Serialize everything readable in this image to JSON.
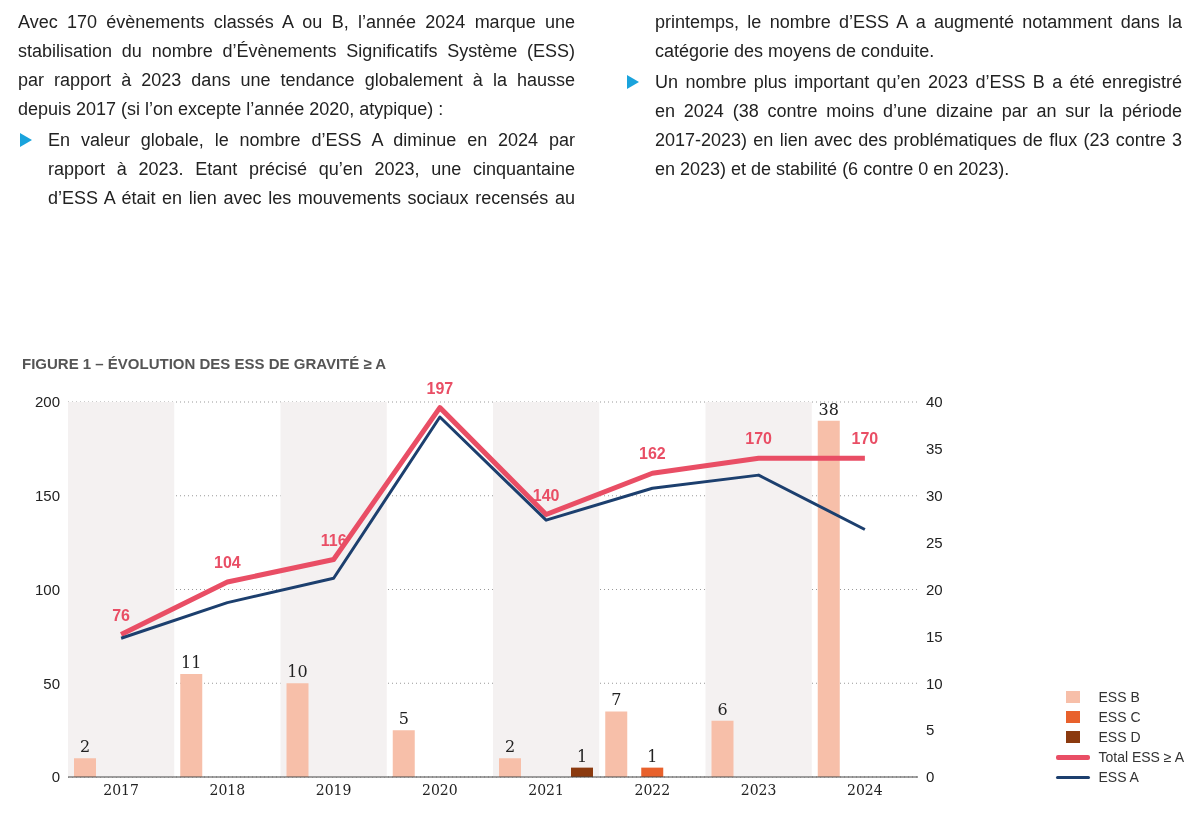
{
  "chart_data": {
    "type": "bar",
    "title": "FIGURE 1 – ÉVOLUTION DES ESS DE GRAVITÉ ≥ A",
    "annotations": [
      "Avec 170 évènements classés A ou B, l’année 2024 marque une stabilisation du nombre d’Évènements Significatifs Système (ESS) par rapport à 2023 dans une tendance globalement à la hausse depuis 2017 (si l’on excepte l’année 2020, atypique) :",
      "En valeur globale, le nombre d’ESS A diminue en 2024 par rapport à 2023. Etant précisé qu’en 2023, une cinquantaine d’ESS A était en lien avec les mouvements sociaux recensés au printemps, le nombre d’ESS A a augmenté notamment dans la catégorie des moyens de conduite.",
      "Un nombre plus important qu’en 2023 d’ESS B a été enregistré en 2024 (38 contre moins d’une dizaine par an sur la période 2017-2023) en lien avec des problématiques de flux (23 contre 3 en 2023) et de stabilité (6 contre 0 en 2023)."
    ],
    "categories": [
      "2017",
      "2018",
      "2019",
      "2020",
      "2021",
      "2022",
      "2023",
      "2024"
    ],
    "series": [
      {
        "name": "ESS B",
        "type": "bar",
        "axis": "y2",
        "color": "#f7bfa9",
        "values": [
          2,
          11,
          10,
          5,
          2,
          7,
          6,
          38
        ],
        "value_labels": [
          "2",
          "11",
          "10",
          "5",
          "2",
          "7",
          "6",
          "38"
        ]
      },
      {
        "name": "ESS C",
        "type": "bar",
        "axis": "y2",
        "color": "#e8612c",
        "values": [
          null,
          null,
          null,
          null,
          null,
          1,
          null,
          null
        ],
        "value_labels": [
          null,
          null,
          null,
          null,
          null,
          "1",
          null,
          null
        ]
      },
      {
        "name": "ESS D",
        "type": "bar",
        "axis": "y2",
        "color": "#8b3a0f",
        "values": [
          null,
          null,
          null,
          null,
          1,
          null,
          null,
          null
        ],
        "value_labels": [
          null,
          null,
          null,
          null,
          "1",
          null,
          null,
          null
        ]
      },
      {
        "name": "Total ESS ≥ A",
        "type": "line",
        "color": "#e94e65",
        "values": [
          76,
          104,
          116,
          197,
          140,
          162,
          170,
          170
        ],
        "value_labels": [
          "76",
          "104",
          "116",
          "197",
          "140",
          "162",
          "170",
          "170"
        ]
      },
      {
        "name": "ESS A",
        "type": "line",
        "color": "#1c3f6e",
        "values": [
          74,
          93,
          106,
          192,
          137,
          154,
          161,
          132
        ]
      }
    ],
    "ylim": [
      0,
      200
    ],
    "yticks": [
      0,
      50,
      100,
      150,
      200
    ],
    "y2lim": [
      0,
      40
    ],
    "y2ticks": [
      0,
      5,
      10,
      15,
      20,
      25,
      30,
      35,
      40
    ],
    "bands": [
      {
        "axis": "x",
        "from": "2017",
        "to": "2017",
        "color": "#f4f1f1"
      },
      {
        "axis": "x",
        "from": "2019",
        "to": "2019",
        "color": "#f4f1f1"
      },
      {
        "axis": "x",
        "from": "2021",
        "to": "2021",
        "color": "#f4f1f1"
      },
      {
        "axis": "x",
        "from": "2023",
        "to": "2023",
        "color": "#f4f1f1"
      }
    ],
    "grid": "y",
    "legend": "bottom right",
    "marker": "none"
  }
}
